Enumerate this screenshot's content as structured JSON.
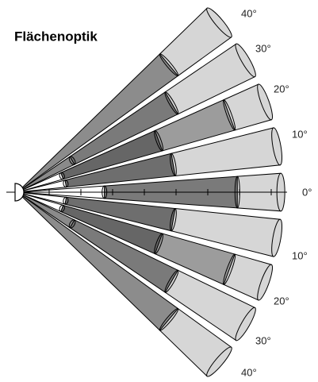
{
  "title": "Flächenoptik",
  "angle_labels": [
    "40°",
    "30°",
    "20°",
    "10°",
    "0°",
    "10°",
    "20°",
    "30°",
    "40°"
  ]
}
